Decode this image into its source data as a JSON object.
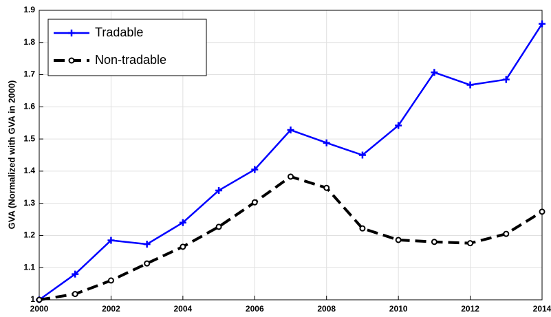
{
  "chart_data": {
    "type": "line",
    "y_label": "GVA (Normalized with GVA in 2000)",
    "x": [
      2000,
      2001,
      2002,
      2003,
      2004,
      2005,
      2006,
      2007,
      2008,
      2009,
      2010,
      2011,
      2012,
      2013,
      2014
    ],
    "series": [
      {
        "name": "Tradable",
        "color": "#0000ff",
        "linestyle": "solid",
        "marker": "plus",
        "values": [
          1.0,
          1.08,
          1.185,
          1.173,
          1.24,
          1.34,
          1.405,
          1.528,
          1.488,
          1.45,
          1.542,
          1.707,
          1.668,
          1.685,
          1.858
        ]
      },
      {
        "name": "Non-tradable",
        "color": "#000000",
        "linestyle": "dashed",
        "marker": "circle",
        "values": [
          1.0,
          1.018,
          1.06,
          1.113,
          1.165,
          1.227,
          1.303,
          1.383,
          1.348,
          1.222,
          1.186,
          1.18,
          1.176,
          1.205,
          1.274
        ]
      }
    ],
    "xlim": [
      2000,
      2014
    ],
    "xticks": [
      2000,
      2002,
      2004,
      2006,
      2008,
      2010,
      2012,
      2014
    ],
    "ylim": [
      1,
      1.9
    ],
    "yticks": [
      1,
      1.1,
      1.2,
      1.3,
      1.4,
      1.5,
      1.6,
      1.7,
      1.8,
      1.9
    ],
    "grid": true,
    "legend": "upper-left"
  }
}
